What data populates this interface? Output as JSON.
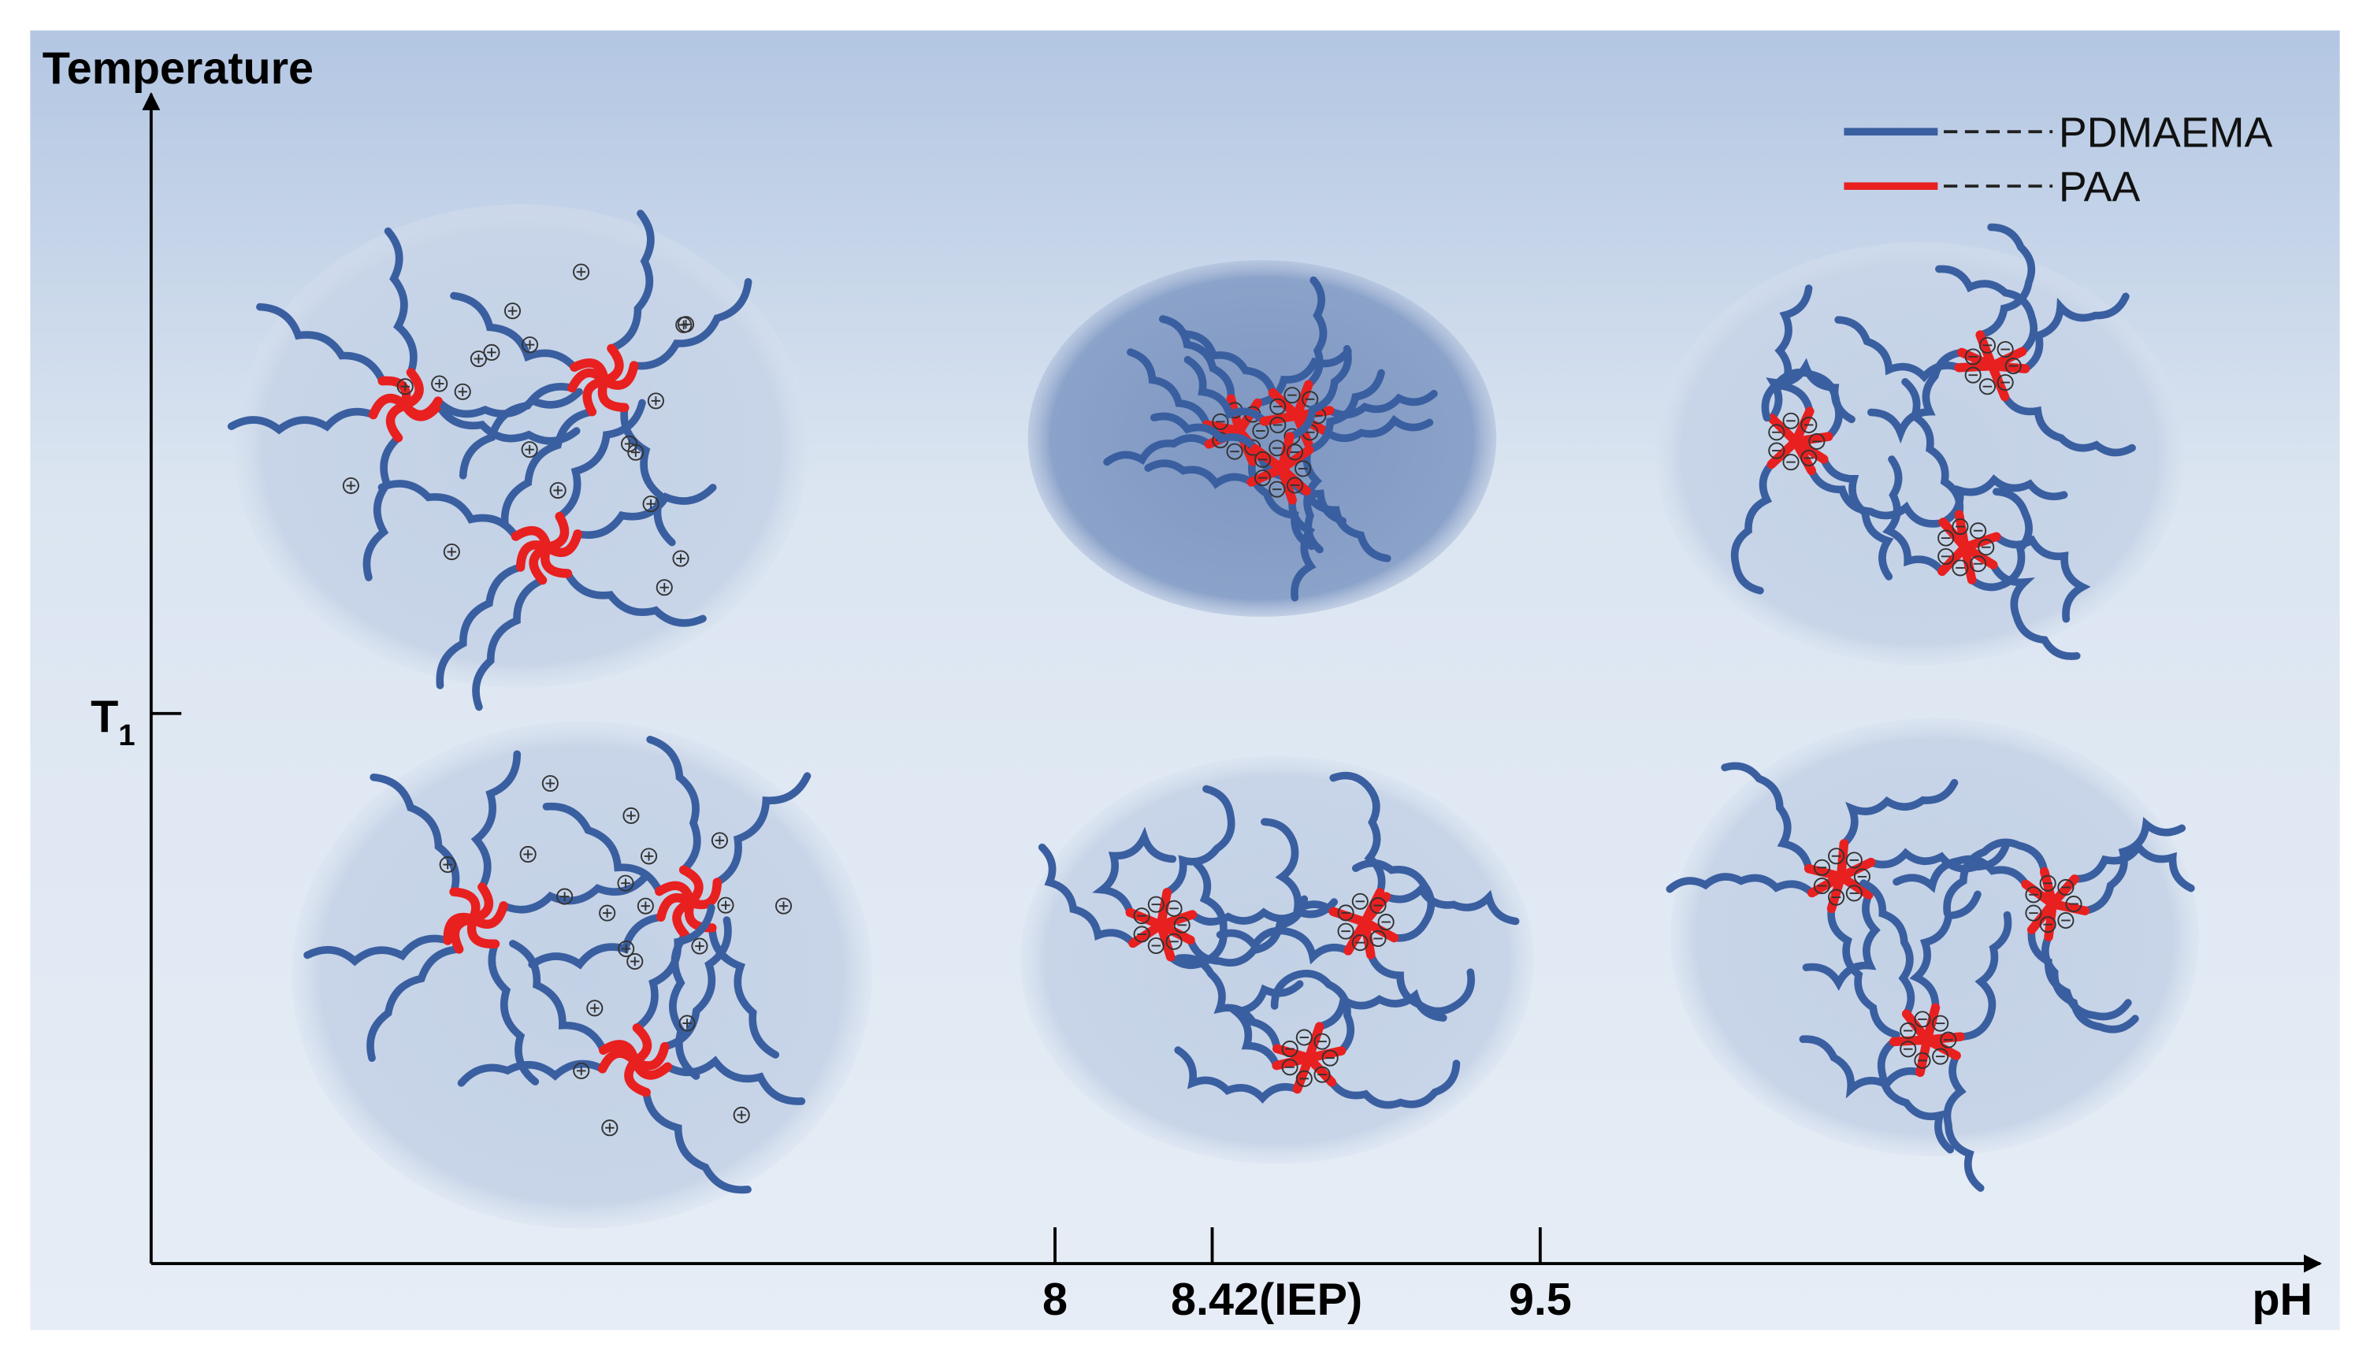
{
  "axes": {
    "y_title": "Temperature",
    "x_title": "pH",
    "y_tick": {
      "main": "T",
      "sub": "1"
    },
    "x_ticks": [
      "8",
      "8.42(IEP)",
      "9.5"
    ]
  },
  "legend": [
    {
      "label": "PDMAEMA",
      "color": "#3a5fa0"
    },
    {
      "label": "PAA",
      "color": "#e82020"
    }
  ]
}
